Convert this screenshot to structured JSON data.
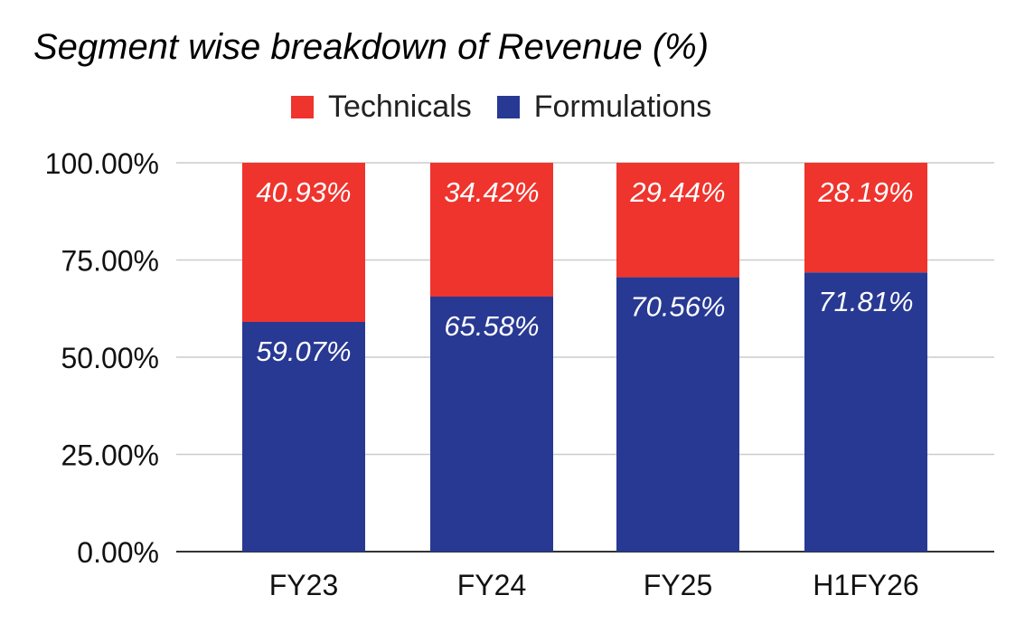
{
  "chart_data": {
    "type": "bar",
    "stacked": true,
    "title": "Segment wise breakdown of Revenue (%)",
    "xlabel": "",
    "ylabel": "",
    "categories": [
      "FY23",
      "FY24",
      "FY25",
      "H1FY26"
    ],
    "series": [
      {
        "name": "Formulations",
        "color": "#283993",
        "values": [
          59.07,
          65.58,
          70.56,
          71.81
        ],
        "labels": [
          "59.07%",
          "65.58%",
          "70.56%",
          "71.81%"
        ]
      },
      {
        "name": "Technicals",
        "color": "#EE342D",
        "values": [
          40.93,
          34.42,
          29.44,
          28.19
        ],
        "labels": [
          "40.93%",
          "34.42%",
          "29.44%",
          "28.19%"
        ]
      }
    ],
    "legend_order": [
      "Technicals",
      "Formulations"
    ],
    "legend_position": "top",
    "ylim": [
      0,
      100
    ],
    "yticks": [
      0,
      25,
      50,
      75,
      100
    ],
    "ytick_labels": [
      "0.00%",
      "25.00%",
      "50.00%",
      "75.00%",
      "100.00%"
    ],
    "grid": true
  }
}
